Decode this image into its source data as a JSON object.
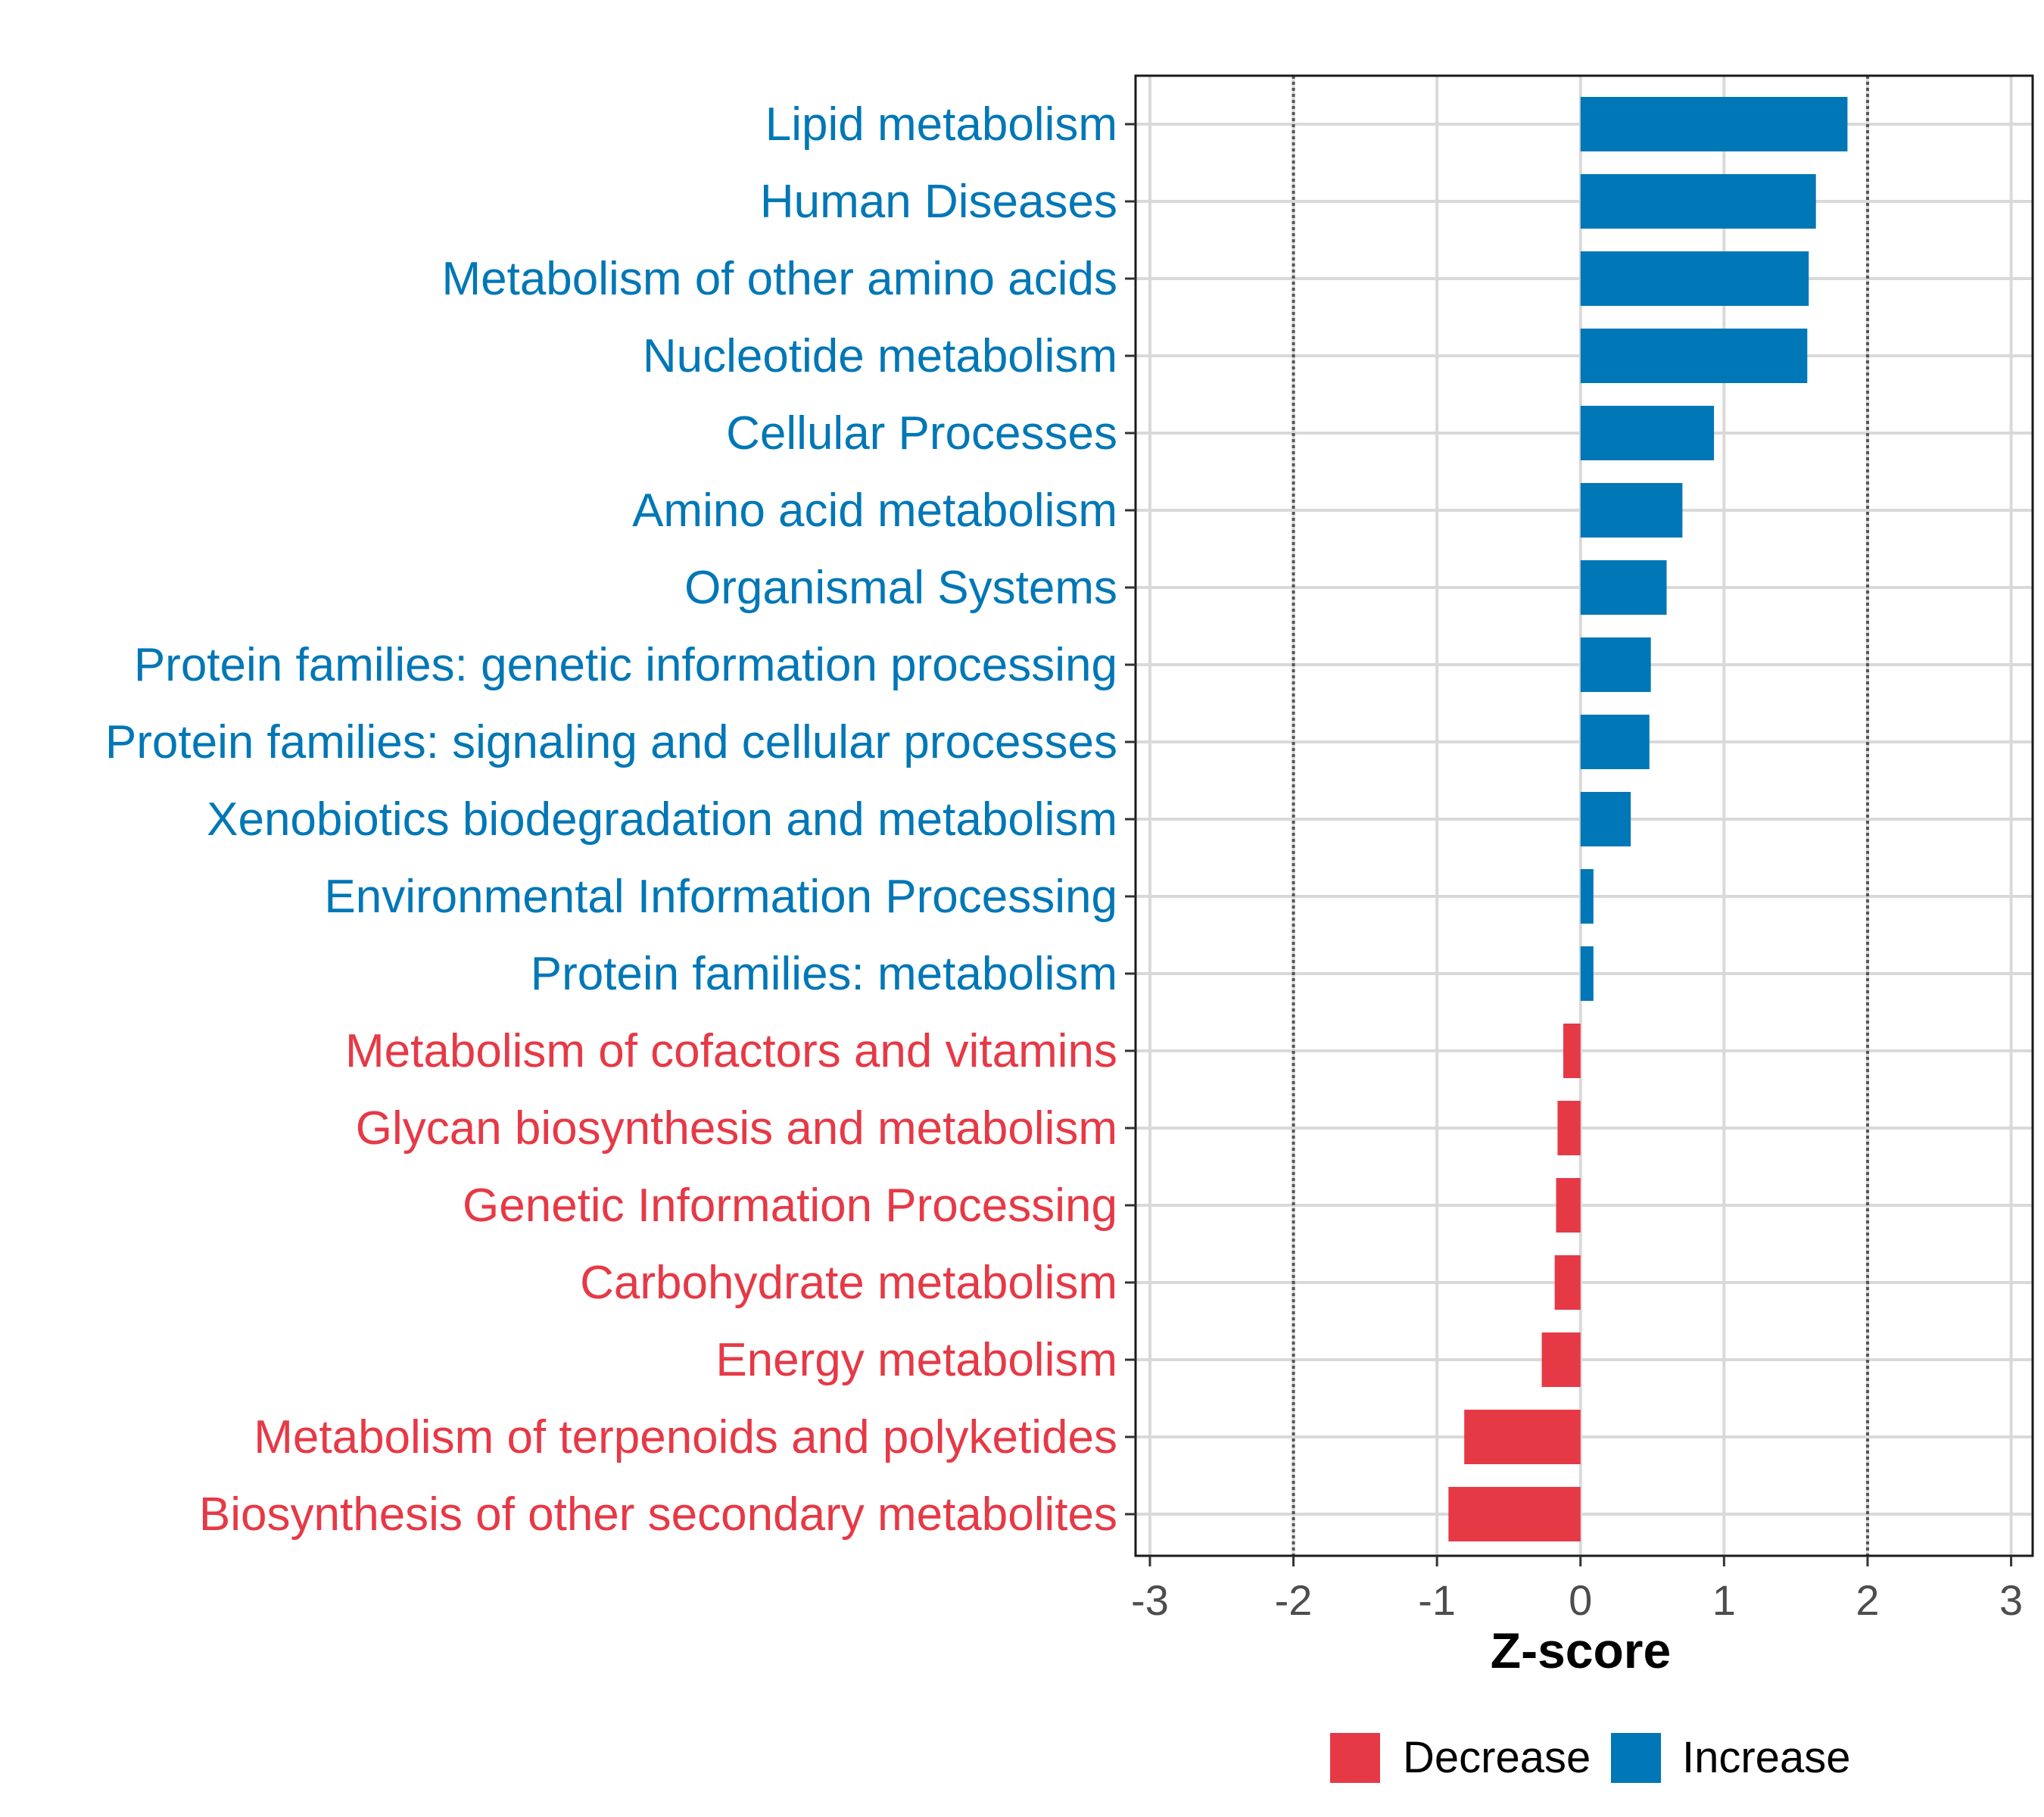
{
  "chart_data": {
    "type": "bar",
    "orientation": "horizontal",
    "xlabel": "Z-score",
    "xlim": [
      -3.1,
      3.15
    ],
    "xticks": [
      -3,
      -2,
      -1,
      0,
      1,
      2,
      3
    ],
    "tick_labels": [
      "-3",
      "-2",
      "-1",
      "0",
      "1",
      "2",
      "3"
    ],
    "reference_lines": [
      -2,
      2
    ],
    "grid": true,
    "legend": {
      "position": "bottom",
      "entries": [
        {
          "name": "Decrease",
          "color": "#E63946"
        },
        {
          "name": "Increase",
          "color": "#0077B6"
        }
      ]
    },
    "categories": [
      "Lipid metabolism",
      "Human Diseases",
      "Metabolism of other amino acids",
      "Nucleotide metabolism",
      "Cellular Processes",
      "Amino acid metabolism",
      "Organismal Systems",
      "Protein families: genetic information processing",
      "Protein families: signaling and cellular processes",
      "Xenobiotics biodegradation and metabolism",
      "Environmental Information Processing",
      "Protein families: metabolism",
      "Metabolism of cofactors and vitamins",
      "Glycan biosynthesis and metabolism",
      "Genetic Information Processing",
      "Carbohydrate metabolism",
      "Energy metabolism",
      "Metabolism of terpenoids and polyketides",
      "Biosynthesis of other secondary metabolites"
    ],
    "values": [
      1.86,
      1.64,
      1.59,
      1.58,
      0.93,
      0.71,
      0.6,
      0.49,
      0.48,
      0.35,
      0.09,
      0.09,
      -0.12,
      -0.16,
      -0.17,
      -0.18,
      -0.27,
      -0.81,
      -0.92
    ],
    "groups": [
      "Increase",
      "Increase",
      "Increase",
      "Increase",
      "Increase",
      "Increase",
      "Increase",
      "Increase",
      "Increase",
      "Increase",
      "Increase",
      "Increase",
      "Decrease",
      "Decrease",
      "Decrease",
      "Decrease",
      "Decrease",
      "Decrease",
      "Decrease"
    ]
  }
}
